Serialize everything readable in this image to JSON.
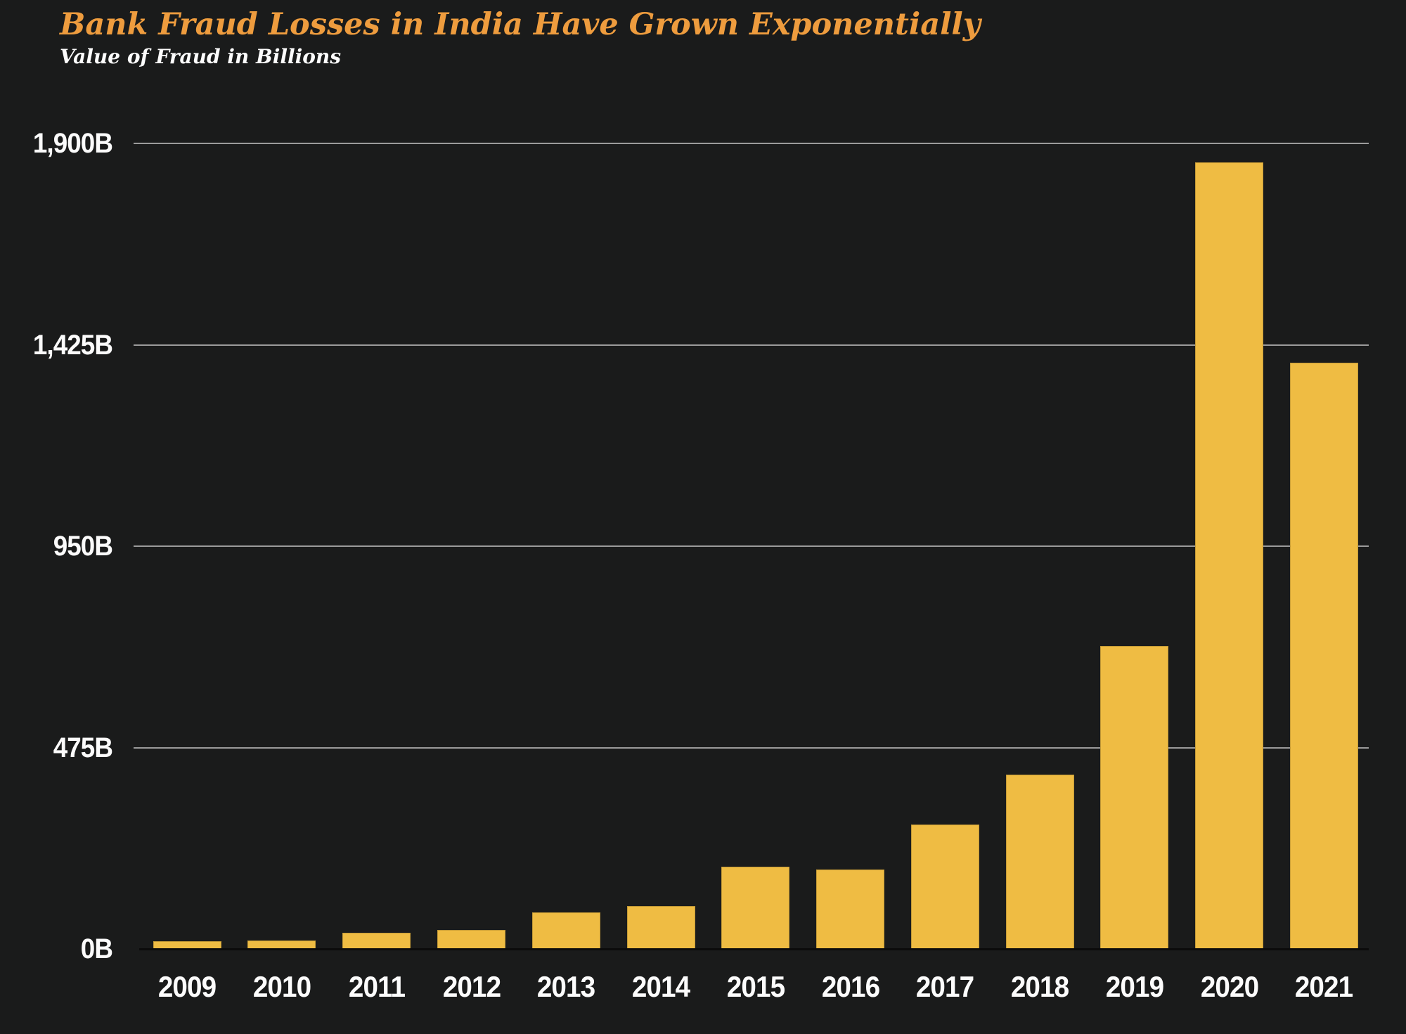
{
  "header": {
    "title": "Bank Fraud Losses in India Have Grown Exponentially",
    "subtitle": "Value of Fraud in Billions"
  },
  "colors": {
    "background": "#1a1b1b",
    "bar": "#efbc43",
    "title": "#ee9c3e",
    "subtitle": "#fdfdfd",
    "axis_text": "#fbfbfb",
    "gridline": "#9b9b9b",
    "axis_line": "#0b0b0b"
  },
  "chart_data": {
    "type": "bar",
    "title": "Bank Fraud Losses in India Have Grown Exponentially",
    "subtitle": "Value of Fraud in Billions",
    "xlabel": "",
    "ylabel": "Value of Fraud in Billions",
    "unit": "B",
    "categories": [
      "2009",
      "2010",
      "2011",
      "2012",
      "2013",
      "2014",
      "2015",
      "2016",
      "2017",
      "2018",
      "2019",
      "2020",
      "2021"
    ],
    "values": [
      18.7,
      19.6,
      37.9,
      45.4,
      86.5,
      100.7,
      194.6,
      186.7,
      293.0,
      411.6,
      715.4,
      1855.3,
      1382.8
    ],
    "ylim": [
      0,
      1900
    ],
    "y_ticks": [
      {
        "value": 0,
        "label": "0B"
      },
      {
        "value": 475,
        "label": "475B"
      },
      {
        "value": 950,
        "label": "950B"
      },
      {
        "value": 1425,
        "label": "1,425B"
      },
      {
        "value": 1900,
        "label": "1,900B"
      }
    ],
    "grid": true,
    "legend": false,
    "bar_color": "#efbc43"
  }
}
